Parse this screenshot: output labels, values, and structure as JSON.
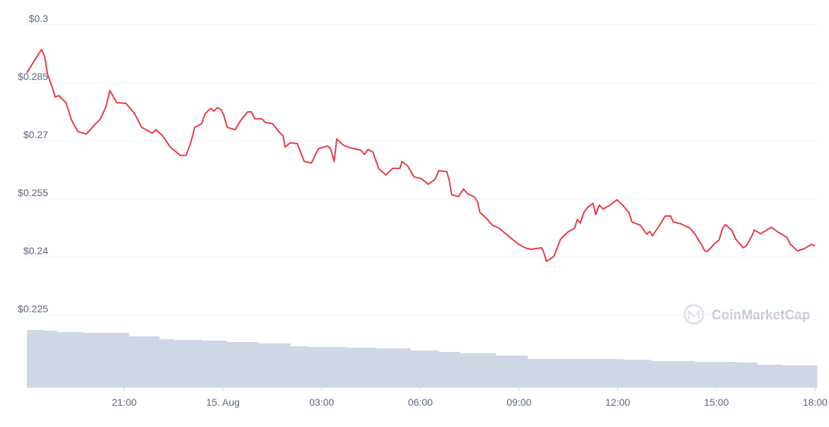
{
  "chart_data": {
    "type": "line",
    "x": [
      -5.96,
      -5.59,
      -5.51,
      -5.42,
      -5.33,
      -5.18,
      -5.1,
      -4.99,
      -4.77,
      -4.6,
      -4.41,
      -4.15,
      -3.94,
      -3.72,
      -3.55,
      -3.44,
      -3.23,
      -2.95,
      -2.69,
      -2.47,
      -2.15,
      -2.04,
      -1.83,
      -1.61,
      -1.29,
      -1.12,
      -0.97,
      -0.86,
      -0.65,
      -0.54,
      -0.37,
      -0.28,
      -0.17,
      -0.06,
      0.02,
      0.13,
      0.37,
      0.54,
      0.75,
      0.86,
      0.97,
      1.18,
      1.29,
      1.51,
      1.72,
      1.83,
      1.89,
      2.04,
      2.26,
      2.47,
      2.69,
      2.9,
      3.18,
      3.27,
      3.38,
      3.46,
      3.66,
      3.87,
      4.19,
      4.3,
      4.41,
      4.56,
      4.73,
      4.95,
      5.16,
      5.38,
      5.44,
      5.61,
      5.81,
      6.02,
      6.24,
      6.45,
      6.56,
      6.8,
      6.88,
      6.95,
      7.16,
      7.31,
      7.44,
      7.63,
      7.74,
      7.81,
      8.0,
      8.19,
      8.39,
      8.54,
      8.75,
      8.99,
      9.18,
      9.35,
      9.68,
      9.74,
      9.83,
      10.06,
      10.26,
      10.47,
      10.69,
      10.77,
      10.86,
      10.97,
      11.08,
      11.25,
      11.33,
      11.44,
      11.55,
      11.76,
      11.98,
      12.15,
      12.34,
      12.43,
      12.69,
      12.88,
      12.97,
      13.05,
      13.25,
      13.44,
      13.61,
      13.68,
      13.91,
      14.19,
      14.34,
      14.54,
      14.65,
      14.73,
      14.95,
      15.08,
      15.18,
      15.27,
      15.46,
      15.59,
      15.81,
      15.91,
      16.09,
      16.15,
      16.34,
      16.67,
      16.88,
      17.14,
      17.25,
      17.46,
      17.68,
      17.89,
      18.0
    ],
    "series": [
      {
        "color": "#ea3943",
        "values": [
          0.2876,
          0.2927,
          0.2936,
          0.2918,
          0.2872,
          0.2835,
          0.2813,
          0.2817,
          0.2799,
          0.2753,
          0.2724,
          0.2718,
          0.2738,
          0.2757,
          0.279,
          0.283,
          0.2799,
          0.2797,
          0.2771,
          0.2735,
          0.272,
          0.2729,
          0.2713,
          0.2685,
          0.2662,
          0.2663,
          0.2698,
          0.2735,
          0.2744,
          0.2771,
          0.2784,
          0.2777,
          0.2786,
          0.2781,
          0.2768,
          0.2735,
          0.2729,
          0.2753,
          0.2775,
          0.2775,
          0.2757,
          0.2757,
          0.2748,
          0.2744,
          0.2722,
          0.2713,
          0.2684,
          0.2695,
          0.2693,
          0.2647,
          0.2643,
          0.268,
          0.2687,
          0.268,
          0.2647,
          0.2705,
          0.2689,
          0.2682,
          0.2676,
          0.2665,
          0.2678,
          0.2671,
          0.2629,
          0.2612,
          0.2629,
          0.2629,
          0.2647,
          0.2636,
          0.2607,
          0.2603,
          0.2588,
          0.2601,
          0.2623,
          0.2621,
          0.2598,
          0.2561,
          0.2556,
          0.2576,
          0.2563,
          0.2556,
          0.2543,
          0.2515,
          0.2501,
          0.2482,
          0.2475,
          0.2464,
          0.2449,
          0.2433,
          0.2424,
          0.242,
          0.2424,
          0.2415,
          0.2389,
          0.2402,
          0.2446,
          0.2464,
          0.2475,
          0.2497,
          0.2488,
          0.2515,
          0.2528,
          0.2539,
          0.251,
          0.2534,
          0.2524,
          0.2534,
          0.2548,
          0.2534,
          0.2515,
          0.2491,
          0.2482,
          0.2459,
          0.2466,
          0.2455,
          0.2479,
          0.2506,
          0.2506,
          0.2491,
          0.2486,
          0.2475,
          0.246,
          0.2433,
          0.2415,
          0.2415,
          0.2435,
          0.2444,
          0.2473,
          0.2484,
          0.247,
          0.2446,
          0.2424,
          0.2429,
          0.2457,
          0.247,
          0.246,
          0.2477,
          0.2464,
          0.2451,
          0.2433,
          0.2416,
          0.2422,
          0.2433,
          0.2429
        ]
      }
    ],
    "volume": {
      "color": "#cfd6e4",
      "x": [
        -5.96,
        -5.48,
        -5.05,
        -4.24,
        -3.55,
        -2.86,
        -1.94,
        -1.51,
        -0.65,
        0.11,
        1.08,
        2.04,
        2.58,
        3.76,
        4.62,
        5.7,
        6.56,
        7.2,
        8.28,
        9.25,
        10.43,
        11.4,
        12.15,
        13.01,
        14.3,
        15.59,
        16.24,
        16.99
      ],
      "values": [
        81,
        80,
        78,
        77,
        77,
        72,
        68,
        67,
        66,
        64,
        62,
        58,
        57,
        56,
        55,
        52,
        50,
        48,
        45,
        40,
        40,
        40,
        39,
        37,
        36,
        35,
        32,
        31
      ],
      "y2lim": [
        0,
        100
      ]
    },
    "xlim": [
      -5.96,
      18.4
    ],
    "xticks": [
      {
        "value": -3,
        "label": "21:00"
      },
      {
        "value": 0,
        "label": "15. Aug"
      },
      {
        "value": 3,
        "label": "03:00"
      },
      {
        "value": 6,
        "label": "06:00"
      },
      {
        "value": 9,
        "label": "09:00"
      },
      {
        "value": 12,
        "label": "12:00"
      },
      {
        "value": 15,
        "label": "15:00"
      },
      {
        "value": 18,
        "label": "18:00"
      }
    ],
    "ylim": [
      0.225,
      0.3
    ],
    "yticks": [
      {
        "value": 0.3,
        "label": "$0.3"
      },
      {
        "value": 0.285,
        "label": "$0.285"
      },
      {
        "value": 0.27,
        "label": "$0.27"
      },
      {
        "value": 0.255,
        "label": "$0.255"
      },
      {
        "value": 0.24,
        "label": "$0.24"
      },
      {
        "value": 0.225,
        "label": "$0.225"
      }
    ],
    "grid": true,
    "watermark": "CoinMarketCap"
  }
}
